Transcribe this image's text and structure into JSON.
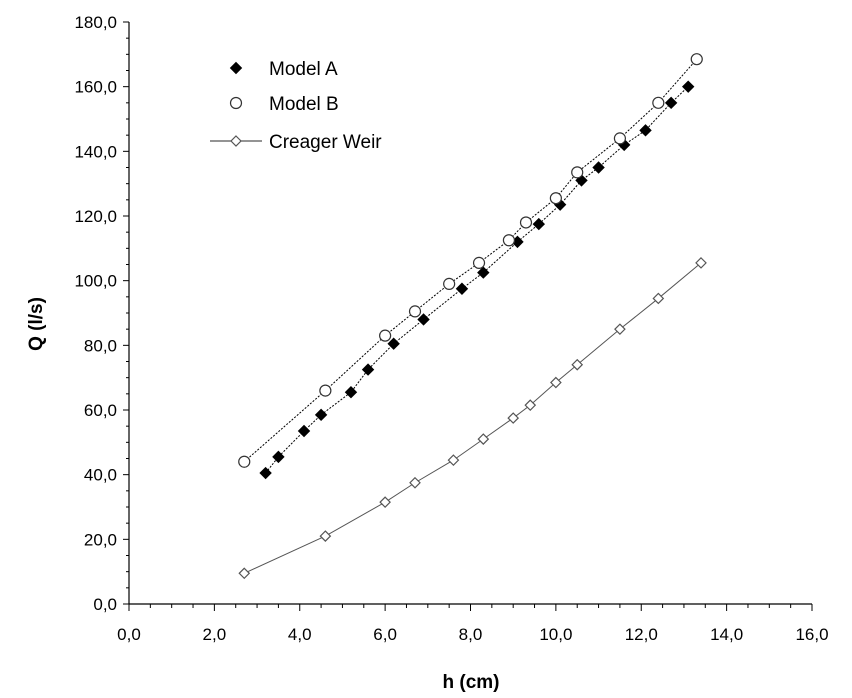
{
  "chart_data": {
    "type": "scatter",
    "title": "",
    "xlabel": "h (cm)",
    "ylabel": "Q (l/s)",
    "xlim": [
      0,
      16
    ],
    "ylim": [
      0,
      180
    ],
    "x_ticks": [
      "0,0",
      "2,0",
      "4,0",
      "6,0",
      "8,0",
      "10,0",
      "12,0",
      "14,0",
      "16,0"
    ],
    "y_ticks": [
      "0,0",
      "20,0",
      "40,0",
      "60,0",
      "80,0",
      "100,0",
      "120,0",
      "140,0",
      "160,0",
      "180,0"
    ],
    "grid": false,
    "legend_position": "top-left",
    "series": [
      {
        "name": "Model A",
        "marker": "filled-diamond",
        "line": "dotted",
        "color": "#000000",
        "points": [
          [
            3.2,
            40.5
          ],
          [
            3.5,
            45.5
          ],
          [
            4.1,
            53.5
          ],
          [
            4.5,
            58.5
          ],
          [
            5.2,
            65.5
          ],
          [
            5.6,
            72.5
          ],
          [
            6.2,
            80.5
          ],
          [
            6.9,
            88.0
          ],
          [
            7.8,
            97.5
          ],
          [
            8.3,
            102.5
          ],
          [
            9.1,
            112.0
          ],
          [
            9.6,
            117.5
          ],
          [
            10.1,
            123.5
          ],
          [
            10.6,
            131.0
          ],
          [
            11.0,
            135.0
          ],
          [
            11.6,
            142.0
          ],
          [
            12.1,
            146.5
          ],
          [
            12.7,
            155.0
          ],
          [
            13.1,
            160.0
          ]
        ]
      },
      {
        "name": "Model B",
        "marker": "open-circle",
        "line": "dotted",
        "color": "#000000",
        "points": [
          [
            2.7,
            44.0
          ],
          [
            4.6,
            66.0
          ],
          [
            6.0,
            83.0
          ],
          [
            6.7,
            90.5
          ],
          [
            7.5,
            99.0
          ],
          [
            8.2,
            105.5
          ],
          [
            8.9,
            112.5
          ],
          [
            9.3,
            118.0
          ],
          [
            10.0,
            125.5
          ],
          [
            10.5,
            133.5
          ],
          [
            11.5,
            144.0
          ],
          [
            12.4,
            155.0
          ],
          [
            13.3,
            168.5
          ]
        ]
      },
      {
        "name": "Creager Weir",
        "marker": "open-diamond",
        "line": "solid",
        "color": "#555555",
        "points": [
          [
            2.7,
            9.5
          ],
          [
            4.6,
            21.0
          ],
          [
            6.0,
            31.5
          ],
          [
            6.7,
            37.5
          ],
          [
            7.6,
            44.5
          ],
          [
            8.3,
            51.0
          ],
          [
            9.0,
            57.5
          ],
          [
            9.4,
            61.5
          ],
          [
            10.0,
            68.5
          ],
          [
            10.5,
            74.0
          ],
          [
            11.5,
            85.0
          ],
          [
            12.4,
            94.5
          ],
          [
            13.4,
            105.5
          ]
        ]
      }
    ]
  }
}
